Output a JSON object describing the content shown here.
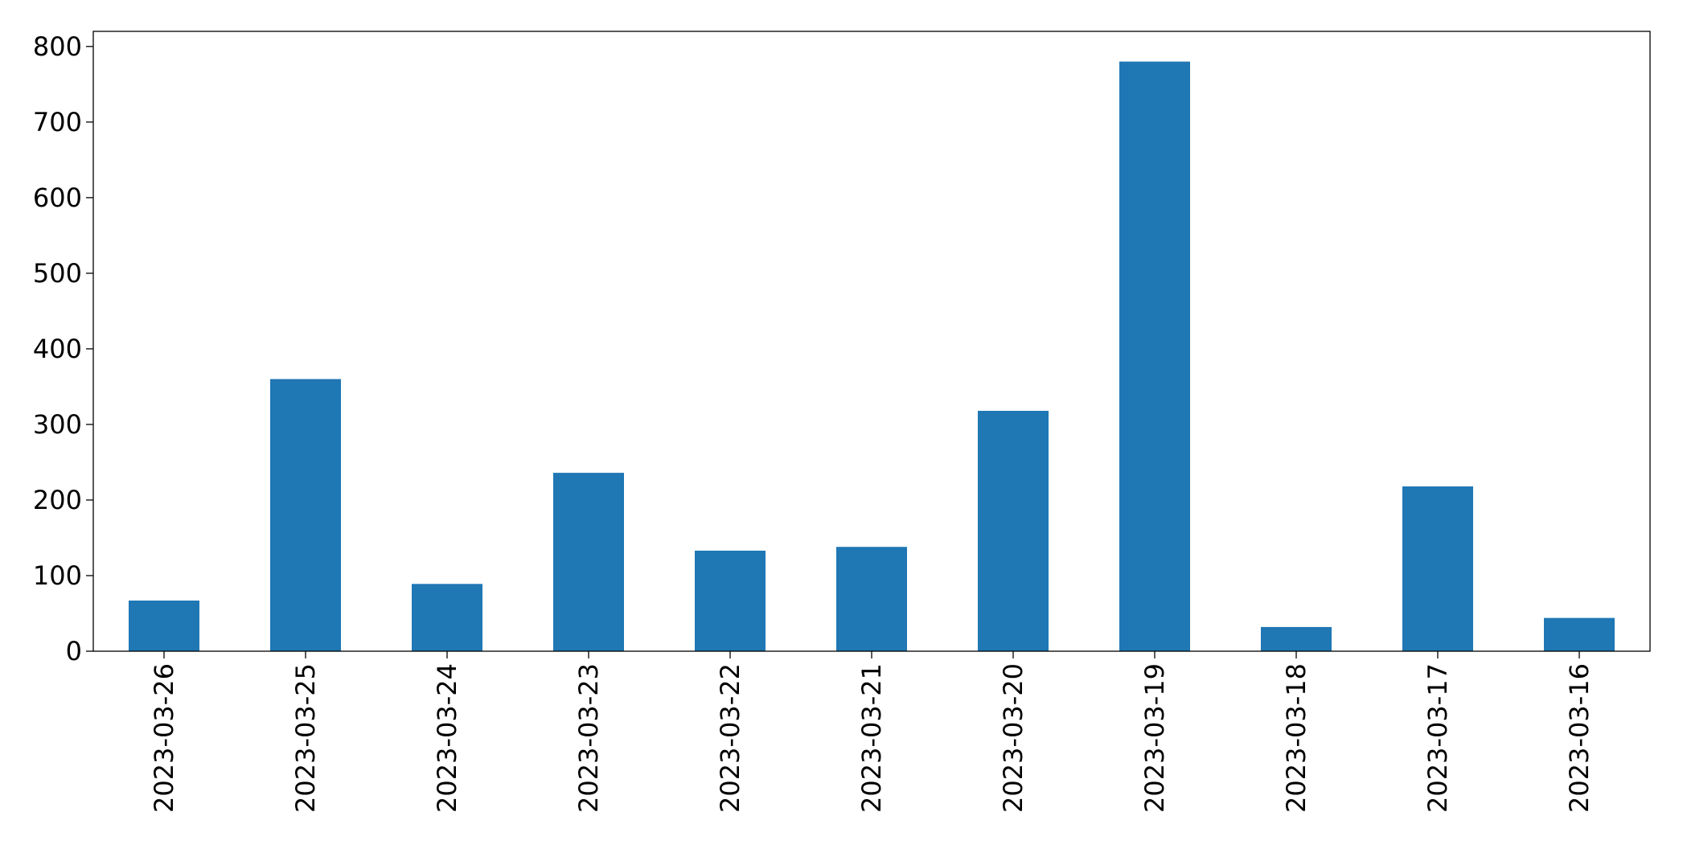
{
  "chart_data": {
    "type": "bar",
    "categories": [
      "2023-03-26",
      "2023-03-25",
      "2023-03-24",
      "2023-03-23",
      "2023-03-22",
      "2023-03-21",
      "2023-03-20",
      "2023-03-19",
      "2023-03-18",
      "2023-03-17",
      "2023-03-16"
    ],
    "values": [
      67,
      360,
      89,
      236,
      133,
      138,
      318,
      780,
      32,
      218,
      44
    ],
    "color": "#1f77b4",
    "ylim": [
      0,
      820
    ],
    "yticks": [
      0,
      100,
      200,
      300,
      400,
      500,
      600,
      700,
      800
    ],
    "grid": false
  }
}
